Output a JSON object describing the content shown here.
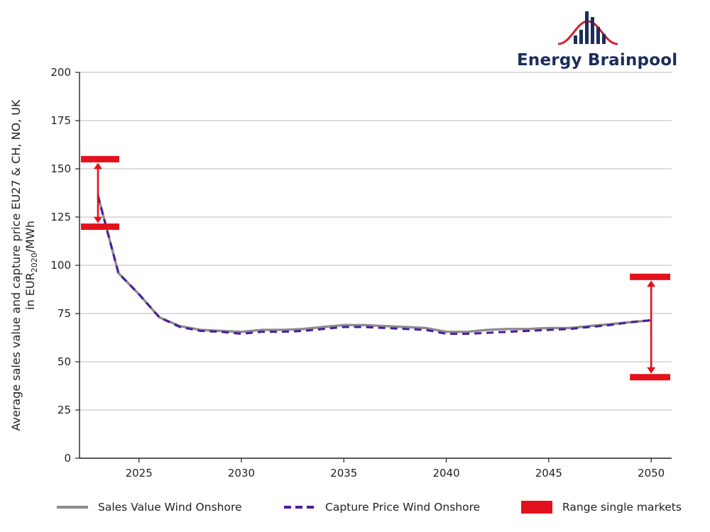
{
  "logo": {
    "text": "Energy Brainpool",
    "colors": {
      "bars": "#1c2d5a",
      "arc": "#d0202e"
    }
  },
  "chart_data": {
    "type": "line",
    "title": "",
    "xlabel": "",
    "ylabel_line1": "Average sales value and capture price EU27 & CH, NO, UK",
    "ylabel_line2_prefix": "in EUR",
    "ylabel_line2_sub": "2020",
    "ylabel_line2_suffix": "/MWh",
    "xlim": [
      2022.1,
      2051
    ],
    "ylim": [
      0,
      200
    ],
    "x_ticks": [
      2025,
      2030,
      2035,
      2040,
      2045,
      2050
    ],
    "y_ticks": [
      0,
      25,
      50,
      75,
      100,
      125,
      150,
      175,
      200
    ],
    "grid": true,
    "legend_placement": "bottom",
    "series": [
      {
        "name": "Sales Value Wind Onshore",
        "style": "solid",
        "color": "#8c8c8c",
        "x": [
          2023,
          2024,
          2025,
          2026,
          2027,
          2028,
          2029,
          2030,
          2031,
          2032,
          2033,
          2034,
          2035,
          2036,
          2037,
          2038,
          2039,
          2040,
          2041,
          2042,
          2043,
          2044,
          2045,
          2046,
          2047,
          2048,
          2049,
          2050
        ],
        "y": [
          136,
          96,
          85,
          73,
          68.5,
          66.5,
          66,
          65.5,
          66.5,
          66.5,
          67,
          68,
          69,
          69,
          68.5,
          68,
          67.5,
          65.5,
          65.5,
          66.5,
          67,
          67,
          67.5,
          67.5,
          68.5,
          69.5,
          70.5,
          71.5
        ]
      },
      {
        "name": "Capture Price Wind Onshore",
        "style": "dashed",
        "color": "#4b1aa0",
        "x": [
          2023,
          2024,
          2025,
          2026,
          2027,
          2028,
          2029,
          2030,
          2031,
          2032,
          2033,
          2034,
          2035,
          2036,
          2037,
          2038,
          2039,
          2040,
          2041,
          2042,
          2043,
          2044,
          2045,
          2046,
          2047,
          2048,
          2049,
          2050
        ],
        "y": [
          136,
          96,
          85,
          73,
          68,
          66,
          65.5,
          64.5,
          65.5,
          65.5,
          66,
          67,
          68,
          68,
          67.5,
          67,
          66.5,
          64.5,
          64.5,
          65,
          65.5,
          66,
          66.5,
          67,
          68,
          69,
          70.5,
          71.5
        ]
      }
    ],
    "ranges": [
      {
        "name": "Range single markets",
        "x": 2023,
        "low": 120,
        "high": 155,
        "color": "#e2111c"
      },
      {
        "name": "Range single markets",
        "x": 2050,
        "low": 42,
        "high": 94,
        "color": "#e2111c"
      }
    ],
    "legend": [
      {
        "label": "Sales Value Wind Onshore",
        "kind": "solid-line",
        "color": "#8c8c8c"
      },
      {
        "label": "Capture Price Wind Onshore",
        "kind": "dashed-line",
        "color": "#4b1aa0"
      },
      {
        "label": "Range single markets",
        "kind": "box",
        "color": "#e2111c"
      }
    ]
  }
}
